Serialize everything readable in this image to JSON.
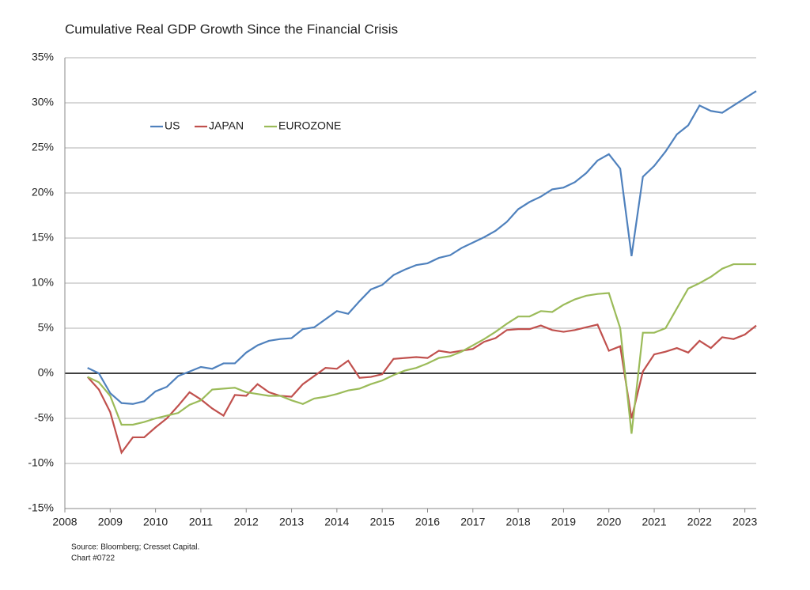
{
  "chart_data": {
    "type": "line",
    "title": "Cumulative Real GDP Growth Since the Financial Crisis",
    "source": "Source: Bloomberg; Cresset Capital.",
    "chart_id": "Chart #0722",
    "x": [
      2008.5,
      2008.75,
      2009,
      2009.25,
      2009.5,
      2009.75,
      2010,
      2010.25,
      2010.5,
      2010.75,
      2011,
      2011.25,
      2011.5,
      2011.75,
      2012,
      2012.25,
      2012.5,
      2012.75,
      2013,
      2013.25,
      2013.5,
      2013.75,
      2014,
      2014.25,
      2014.5,
      2014.75,
      2015,
      2015.25,
      2015.5,
      2015.75,
      2016,
      2016.25,
      2016.5,
      2016.75,
      2017,
      2017.25,
      2017.5,
      2017.75,
      2018,
      2018.25,
      2018.5,
      2018.75,
      2019,
      2019.25,
      2019.5,
      2019.75,
      2020,
      2020.25,
      2020.5,
      2020.75,
      2021,
      2021.25,
      2021.5,
      2021.75,
      2022,
      2022.25,
      2022.5,
      2022.75,
      2023,
      2023.25
    ],
    "series": [
      {
        "name": "US",
        "color": "#4f81bd",
        "values": [
          0.6,
          0.0,
          -2.2,
          -3.3,
          -3.4,
          -3.1,
          -2.0,
          -1.5,
          -0.3,
          0.2,
          0.7,
          0.5,
          1.1,
          1.1,
          2.3,
          3.1,
          3.6,
          3.8,
          3.9,
          4.9,
          5.1,
          6.0,
          6.9,
          6.6,
          8.0,
          9.3,
          9.8,
          10.9,
          11.5,
          12.0,
          12.2,
          12.8,
          13.1,
          13.9,
          14.5,
          15.1,
          15.8,
          16.8,
          18.2,
          19.0,
          19.6,
          20.4,
          20.6,
          21.2,
          22.2,
          23.6,
          24.3,
          22.7,
          13.0,
          21.8,
          23.0,
          24.6,
          26.5,
          27.5,
          29.7,
          29.1,
          28.9,
          29.7,
          30.5,
          31.3
        ]
      },
      {
        "name": "JAPAN",
        "color": "#c0504d",
        "values": [
          -0.4,
          -1.8,
          -4.3,
          -8.8,
          -7.1,
          -7.1,
          -6.0,
          -5.0,
          -3.6,
          -2.1,
          -2.9,
          -3.9,
          -4.7,
          -2.4,
          -2.5,
          -1.2,
          -2.1,
          -2.5,
          -2.6,
          -1.2,
          -0.3,
          0.6,
          0.5,
          1.4,
          -0.5,
          -0.4,
          -0.1,
          1.6,
          1.7,
          1.8,
          1.7,
          2.5,
          2.3,
          2.5,
          2.7,
          3.5,
          3.9,
          4.8,
          4.9,
          4.9,
          5.3,
          4.8,
          4.6,
          4.8,
          5.1,
          5.4,
          2.5,
          3.0,
          -5.0,
          0.2,
          2.1,
          2.4,
          2.8,
          2.3,
          3.6,
          2.8,
          4.0,
          3.8,
          4.3,
          5.3
        ]
      },
      {
        "name": "EUROZONE",
        "color": "#9bbb59",
        "values": [
          -0.4,
          -1.0,
          -2.5,
          -5.7,
          -5.7,
          -5.4,
          -5.0,
          -4.7,
          -4.4,
          -3.5,
          -3.0,
          -1.8,
          -1.7,
          -1.6,
          -2.1,
          -2.3,
          -2.5,
          -2.5,
          -3.0,
          -3.4,
          -2.8,
          -2.6,
          -2.3,
          -1.9,
          -1.7,
          -1.2,
          -0.8,
          -0.2,
          0.3,
          0.6,
          1.1,
          1.7,
          1.9,
          2.4,
          3.1,
          3.8,
          4.6,
          5.5,
          6.3,
          6.3,
          6.9,
          6.8,
          7.6,
          8.2,
          8.6,
          8.8,
          8.9,
          5.0,
          -6.7,
          4.5,
          4.5,
          5.0,
          7.2,
          9.4,
          10.0,
          10.7,
          11.6,
          12.1,
          12.1,
          12.1
        ]
      }
    ],
    "xlim": [
      2008,
      2023.25
    ],
    "xticks": [
      2008,
      2009,
      2010,
      2011,
      2012,
      2013,
      2014,
      2015,
      2016,
      2017,
      2018,
      2019,
      2020,
      2021,
      2022,
      2023
    ],
    "ylim": [
      -15,
      35
    ],
    "yticks": [
      {
        "value": -15,
        "label": "-15%"
      },
      {
        "value": -10,
        "label": "-10%"
      },
      {
        "value": -5,
        "label": "-5%"
      },
      {
        "value": 0,
        "label": "0%"
      },
      {
        "value": 5,
        "label": "5%"
      },
      {
        "value": 10,
        "label": "10%"
      },
      {
        "value": 15,
        "label": "15%"
      },
      {
        "value": 20,
        "label": "20%"
      },
      {
        "value": 25,
        "label": "25%"
      },
      {
        "value": 30,
        "label": "30%"
      },
      {
        "value": 35,
        "label": "35%"
      }
    ],
    "grid": true,
    "legend": "upper left"
  }
}
